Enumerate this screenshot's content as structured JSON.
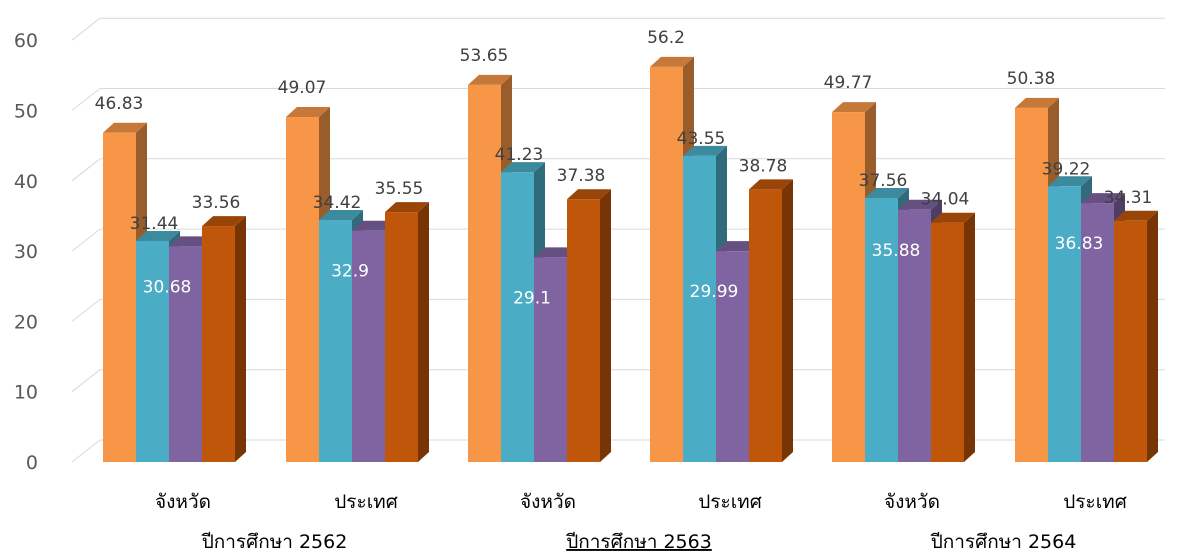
{
  "chart_data": {
    "type": "bar",
    "style": "3d-clustered-column",
    "ylim": [
      0,
      60
    ],
    "y_ticks": [
      0,
      10,
      20,
      30,
      40,
      50,
      60
    ],
    "grid": true,
    "categories": [
      "จังหวัด",
      "ประเทศ",
      "จังหวัด",
      "ประเทศ",
      "จังหวัด",
      "ประเทศ"
    ],
    "groups": [
      {
        "label": "ปีการศึกษา 2562",
        "underlined": false
      },
      {
        "label": "ปีการศึกษา 2563",
        "underlined": true
      },
      {
        "label": "ปีการศึกษา 2564",
        "underlined": false
      }
    ],
    "series": [
      {
        "color": "#F79646",
        "values": [
          46.83,
          49.07,
          53.65,
          56.2,
          49.77,
          50.38
        ]
      },
      {
        "color": "#4BACC6",
        "values": [
          31.44,
          34.42,
          41.23,
          43.55,
          37.56,
          39.22
        ]
      },
      {
        "color": "#8064A2",
        "values": [
          30.68,
          32.9,
          29.1,
          29.99,
          35.88,
          36.83
        ]
      },
      {
        "color": "#C0560A",
        "values": [
          33.56,
          35.55,
          37.38,
          38.78,
          34.04,
          34.31
        ]
      }
    ],
    "labels": [
      [
        "46.83",
        "49.07",
        "53.65",
        "56.2",
        "49.77",
        "50.38"
      ],
      [
        "31.44",
        "34.42",
        "41.23",
        "43.55",
        "37.56",
        "39.22"
      ],
      [
        "30.68",
        "32.9",
        "29.1",
        "29.99",
        "35.88",
        "36.83"
      ],
      [
        "33.56",
        "35.55",
        "37.38",
        "38.78",
        "34.04",
        "34.31"
      ]
    ]
  }
}
